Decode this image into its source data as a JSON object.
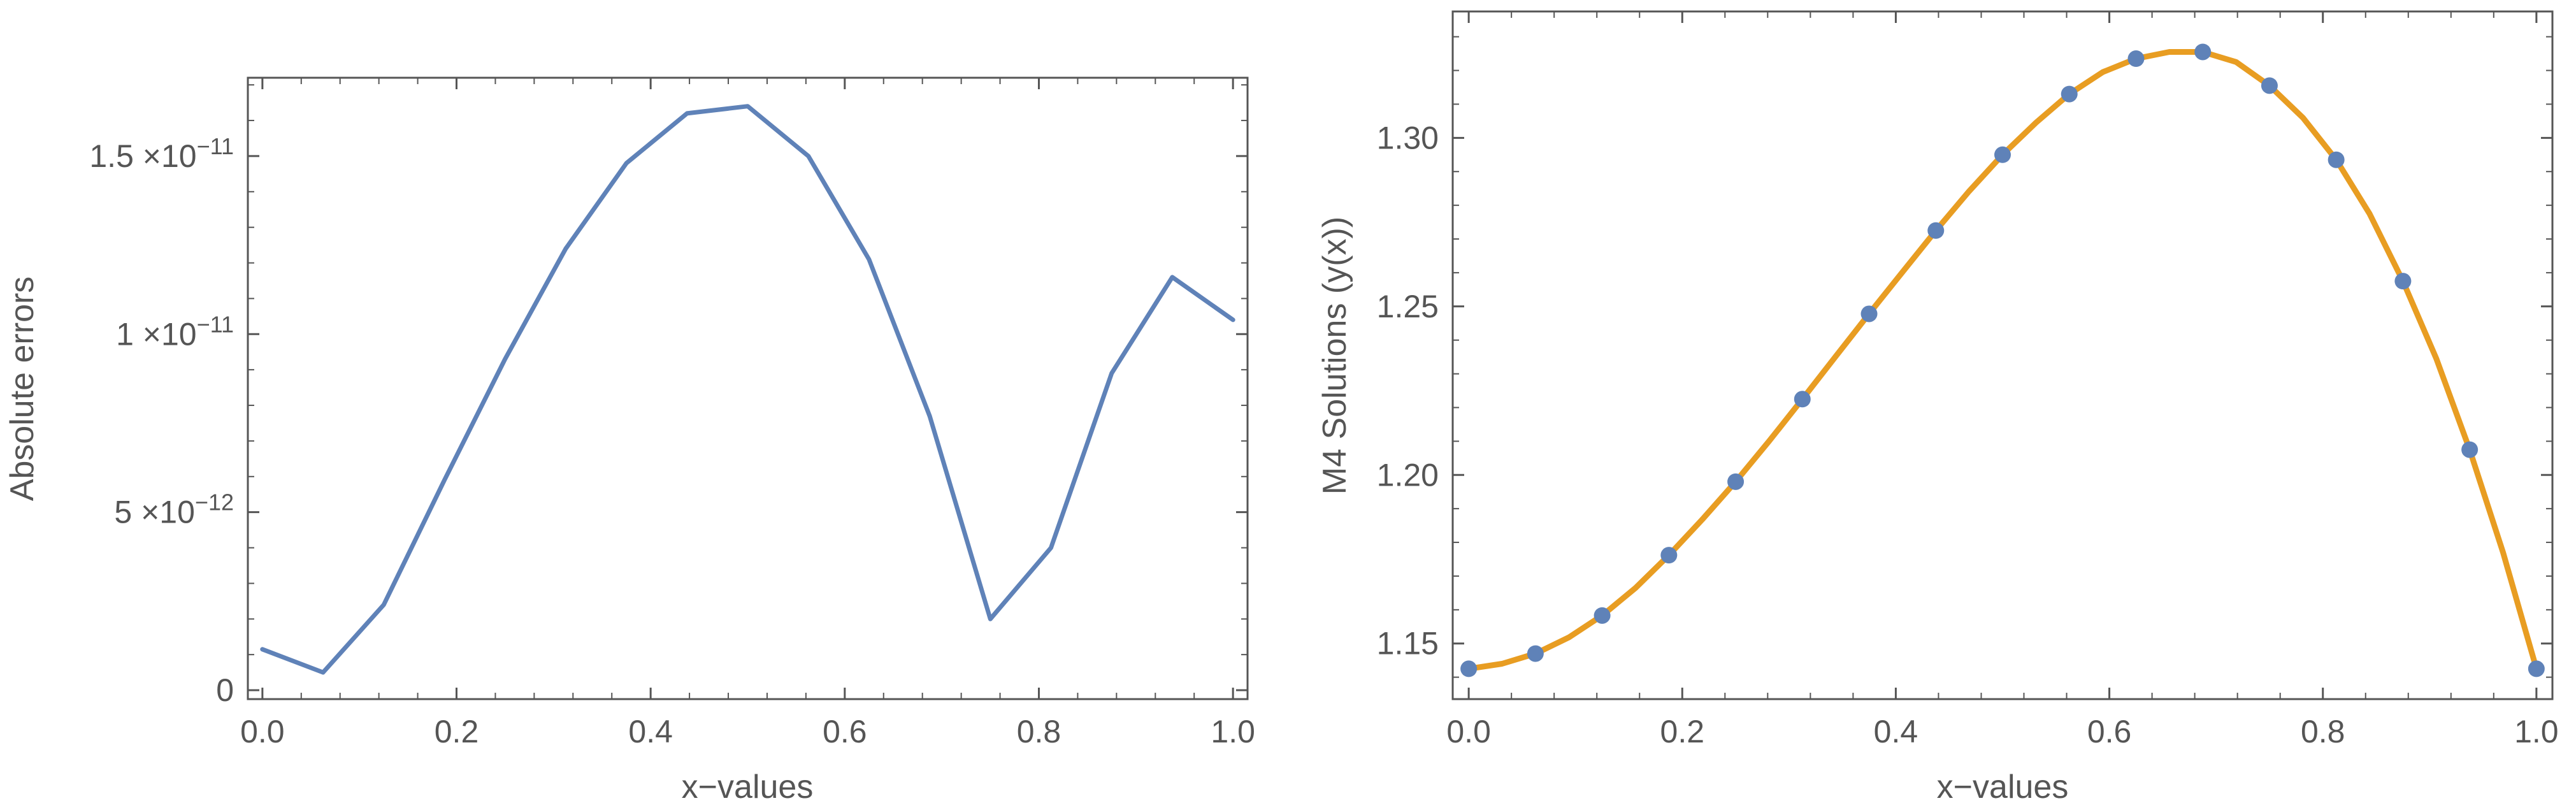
{
  "colors": {
    "series_blue": "#5f82b8",
    "series_orange": "#e89d22",
    "axis": "#555555"
  },
  "chart_data": [
    {
      "type": "line",
      "title": "",
      "xlabel": "x−values",
      "ylabel": "Absolute errors",
      "xlim": [
        -0.015,
        1.015
      ],
      "ylim": [
        -2.5e-13,
        1.72e-11
      ],
      "grid": false,
      "x_ticks": [
        {
          "value": 0.0,
          "label": "0.0"
        },
        {
          "value": 0.2,
          "label": "0.2"
        },
        {
          "value": 0.4,
          "label": "0.4"
        },
        {
          "value": 0.6,
          "label": "0.6"
        },
        {
          "value": 0.8,
          "label": "0.8"
        },
        {
          "value": 1.0,
          "label": "1.0"
        }
      ],
      "y_ticks": [
        {
          "value": 0,
          "label": "0"
        },
        {
          "value": 5e-12,
          "mantissa": "5",
          "base": "×10",
          "exponent": "−12"
        },
        {
          "value": 1e-11,
          "mantissa": "1",
          "base": "×10",
          "exponent": "−11"
        },
        {
          "value": 1.5e-11,
          "mantissa": "1.5",
          "base": "×10",
          "exponent": "−11"
        }
      ],
      "series": [
        {
          "name": "Absolute errors",
          "style": "line",
          "color": "#5f82b8",
          "x": [
            0.0,
            0.0625,
            0.125,
            0.1875,
            0.25,
            0.3125,
            0.375,
            0.4375,
            0.5,
            0.5625,
            0.625,
            0.6875,
            0.75,
            0.8125,
            0.875,
            0.9375,
            1.0
          ],
          "y": [
            1.15e-12,
            5e-13,
            2.4e-12,
            5.9e-12,
            9.3e-12,
            1.24e-11,
            1.48e-11,
            1.62e-11,
            1.64e-11,
            1.5e-11,
            1.21e-11,
            7.7e-12,
            2e-12,
            4e-12,
            8.9e-12,
            1.16e-11,
            1.04e-11
          ]
        }
      ]
    },
    {
      "type": "line",
      "title": "",
      "xlabel": "x−values",
      "ylabel": "M4 Solutions (y(x))",
      "xlim": [
        -0.015,
        1.015
      ],
      "ylim": [
        1.1335,
        1.3375
      ],
      "grid": false,
      "x_ticks": [
        {
          "value": 0.0,
          "label": "0.0"
        },
        {
          "value": 0.2,
          "label": "0.2"
        },
        {
          "value": 0.4,
          "label": "0.4"
        },
        {
          "value": 0.6,
          "label": "0.6"
        },
        {
          "value": 0.8,
          "label": "0.8"
        },
        {
          "value": 1.0,
          "label": "1.0"
        }
      ],
      "y_ticks": [
        {
          "value": 1.15,
          "label": "1.15"
        },
        {
          "value": 1.2,
          "label": "1.20"
        },
        {
          "value": 1.25,
          "label": "1.25"
        },
        {
          "value": 1.3,
          "label": "1.30"
        }
      ],
      "series": [
        {
          "name": "Solution curve",
          "style": "line",
          "color": "#e89d22",
          "x": [
            0.0,
            0.03125,
            0.0625,
            0.09375,
            0.125,
            0.15625,
            0.1875,
            0.21875,
            0.25,
            0.28125,
            0.3125,
            0.34375,
            0.375,
            0.40625,
            0.4375,
            0.46875,
            0.5,
            0.53125,
            0.5625,
            0.59375,
            0.625,
            0.65625,
            0.6875,
            0.71875,
            0.75,
            0.78125,
            0.8125,
            0.84375,
            0.875,
            0.90625,
            0.9375,
            0.96875,
            1.0
          ],
          "y": [
            1.1425,
            1.144,
            1.147,
            1.1518,
            1.1583,
            1.1665,
            1.1762,
            1.1868,
            1.198,
            1.21,
            1.2225,
            1.2352,
            1.2478,
            1.2602,
            1.2725,
            1.2842,
            1.295,
            1.3045,
            1.313,
            1.3195,
            1.3235,
            1.3255,
            1.3255,
            1.3225,
            1.3155,
            1.306,
            1.2935,
            1.2775,
            1.2575,
            1.2345,
            1.2075,
            1.177,
            1.1425
          ]
        },
        {
          "name": "Solution points",
          "style": "markers",
          "color": "#5f82b8",
          "x": [
            0.0,
            0.0625,
            0.125,
            0.1875,
            0.25,
            0.3125,
            0.375,
            0.4375,
            0.5,
            0.5625,
            0.625,
            0.6875,
            0.75,
            0.8125,
            0.875,
            0.9375,
            1.0
          ],
          "y": [
            1.1425,
            1.147,
            1.1583,
            1.1762,
            1.198,
            1.2225,
            1.2478,
            1.2725,
            1.295,
            1.313,
            1.3235,
            1.3255,
            1.3155,
            1.2935,
            1.2575,
            1.2075,
            1.1425
          ]
        }
      ]
    }
  ]
}
